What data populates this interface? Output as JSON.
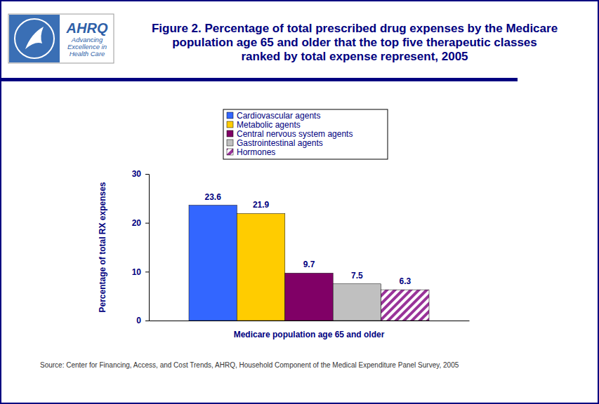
{
  "logo": {
    "name": "AHRQ",
    "tagline": [
      "Advancing",
      "Excellence in",
      "Health Care"
    ]
  },
  "chart_data": {
    "type": "bar",
    "title": "Figure 2. Percentage of total prescribed drug expenses by the Medicare population age 65 and older that the top five therapeutic classes ranked by total expense represent, 2005",
    "categories": [
      "Medicare population age 65 and older"
    ],
    "y_label": "Percentage of total RX expenses",
    "series": [
      {
        "name": "Cardiovascular agents",
        "color": "#3366ff",
        "values": [
          23.6
        ]
      },
      {
        "name": "Metabolic agents",
        "color": "#ffcc00",
        "values": [
          21.9
        ]
      },
      {
        "name": "Central nervous system agents",
        "color": "#800066",
        "values": [
          9.7
        ]
      },
      {
        "name": "Gastrointestinal agents",
        "color": "#c0c0c0",
        "values": [
          7.5
        ]
      },
      {
        "name": "Hormones",
        "color": "#993399",
        "marker": "hatch",
        "values": [
          6.3
        ]
      }
    ],
    "ylim": [
      0,
      30
    ],
    "yticks": [
      0,
      10,
      20,
      30
    ],
    "data_labels": true,
    "legend": "top",
    "source": "Source: Center for Financing, Access, and Cost Trends, AHRQ, Household Component of the Medical Expenditure Panel Survey, 2005"
  }
}
